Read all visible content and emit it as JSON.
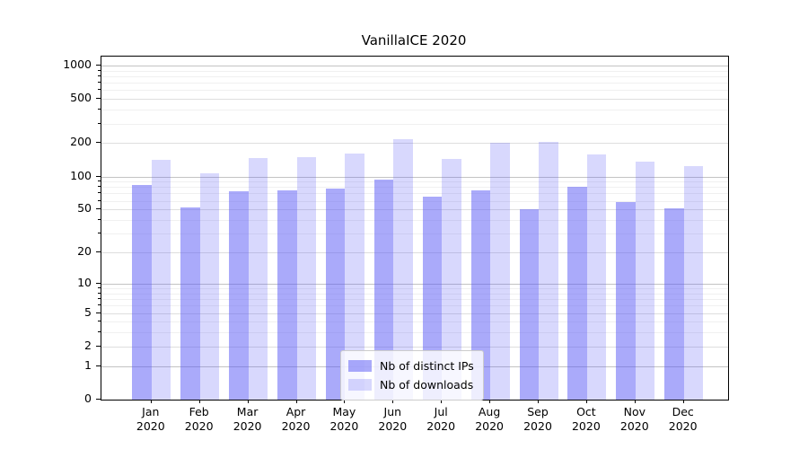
{
  "title": "VanillaICE 2020",
  "chart_data": {
    "type": "bar",
    "title": "VanillaICE 2020",
    "categories": [
      "Jan",
      "Feb",
      "Mar",
      "Apr",
      "May",
      "Jun",
      "Jul",
      "Aug",
      "Sep",
      "Oct",
      "Nov",
      "Dec"
    ],
    "category_year": "2020",
    "series": [
      {
        "name": "Nb of distinct IPs",
        "color": "rgba(86,86,245,0.5)",
        "values": [
          83,
          52,
          74,
          75,
          78,
          93,
          65,
          75,
          50,
          81,
          58,
          51
        ]
      },
      {
        "name": "Nb of downloads",
        "color": "rgba(86,86,245,0.23)",
        "values": [
          142,
          107,
          148,
          149,
          161,
          216,
          143,
          201,
          205,
          159,
          135,
          123
        ]
      }
    ],
    "y_scale": "log10(value+1)",
    "y_ticks": [
      0,
      1,
      2,
      5,
      10,
      20,
      50,
      100,
      200,
      500,
      1000
    ],
    "y_major_ticks": [
      1,
      10,
      100,
      1000
    ],
    "ylim": [
      0,
      1200
    ],
    "grid": true,
    "legend_position": "lower-center",
    "frame_color": "#000000",
    "grid_major_color": "#c3c3c3",
    "grid_minor_color": "#f0f0f0"
  }
}
